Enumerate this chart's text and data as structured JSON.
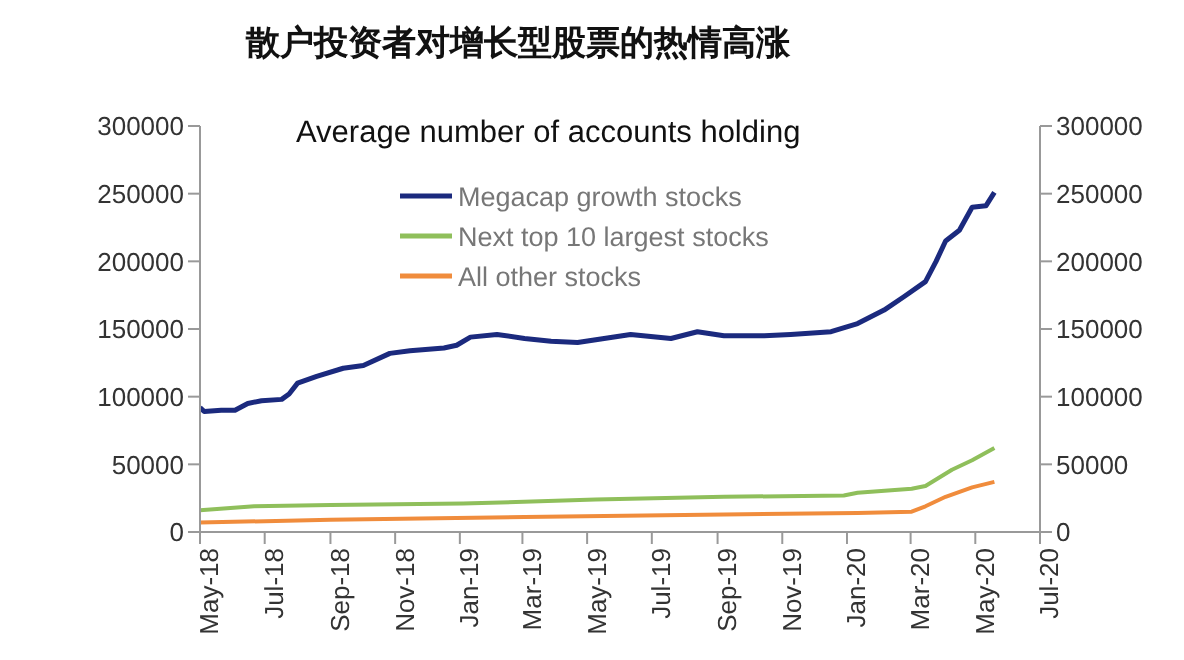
{
  "chart_data": {
    "type": "line",
    "title": "散户投资者对增长型股票的热情高涨",
    "subtitle": "Average number of accounts holding",
    "xlim": [
      "2018-05-01",
      "2020-07-01"
    ],
    "xticks": [
      {
        "value": "2018-05-01",
        "label": "May-18"
      },
      {
        "value": "2018-07-01",
        "label": "Jul-18"
      },
      {
        "value": "2018-09-01",
        "label": "Sep-18"
      },
      {
        "value": "2018-11-01",
        "label": "Nov-18"
      },
      {
        "value": "2019-01-01",
        "label": "Jan-19"
      },
      {
        "value": "2019-03-01",
        "label": "Mar-19"
      },
      {
        "value": "2019-05-01",
        "label": "May-19"
      },
      {
        "value": "2019-07-01",
        "label": "Jul-19"
      },
      {
        "value": "2019-09-01",
        "label": "Sep-19"
      },
      {
        "value": "2019-11-01",
        "label": "Nov-19"
      },
      {
        "value": "2020-01-01",
        "label": "Jan-20"
      },
      {
        "value": "2020-03-01",
        "label": "Mar-20"
      },
      {
        "value": "2020-05-01",
        "label": "May-20"
      },
      {
        "value": "2020-07-01",
        "label": "Jul-20"
      }
    ],
    "ylim": [
      0,
      300000
    ],
    "yticks": [
      0,
      50000,
      100000,
      150000,
      200000,
      250000,
      300000
    ],
    "y2lim": [
      0,
      300000
    ],
    "y2ticks": [
      0,
      50000,
      100000,
      150000,
      200000,
      250000,
      300000
    ],
    "grid": false,
    "legend": "top",
    "marker": "none",
    "line_style": "solid",
    "series": [
      {
        "name": "Megacap growth stocks",
        "color": "#1b2a7e",
        "x": [
          "2018-05-01",
          "2018-05-05",
          "2018-05-21",
          "2018-06-03",
          "2018-06-15",
          "2018-06-28",
          "2018-07-17",
          "2018-07-24",
          "2018-08-01",
          "2018-08-19",
          "2018-09-13",
          "2018-10-02",
          "2018-10-27",
          "2018-11-15",
          "2018-12-17",
          "2018-12-29",
          "2019-01-11",
          "2019-02-05",
          "2019-03-03",
          "2019-03-28",
          "2019-04-22",
          "2019-05-17",
          "2019-06-11",
          "2019-07-19",
          "2019-08-13",
          "2019-09-07",
          "2019-10-15",
          "2019-11-09",
          "2019-12-17",
          "2020-01-11",
          "2020-02-05",
          "2020-02-24",
          "2020-03-15",
          "2020-03-25",
          "2020-04-03",
          "2020-04-16",
          "2020-04-28",
          "2020-05-11",
          "2020-05-19"
        ],
        "values": [
          92000,
          89000,
          90000,
          90000,
          95000,
          97000,
          98000,
          102000,
          110000,
          115000,
          121000,
          123000,
          132000,
          134000,
          136000,
          138000,
          144000,
          146000,
          143000,
          141000,
          140000,
          143000,
          146000,
          143000,
          148000,
          145000,
          145000,
          146000,
          148000,
          154000,
          164000,
          174000,
          185000,
          200000,
          215000,
          223000,
          240000,
          241000,
          251000
        ]
      },
      {
        "name": "Next top 10 largest stocks",
        "color": "#8fbf5b",
        "x": [
          "2018-05-01",
          "2018-06-21",
          "2018-09-01",
          "2019-01-04",
          "2019-05-09",
          "2019-09-07",
          "2019-12-29",
          "2020-01-11",
          "2020-03-02",
          "2020-03-15",
          "2020-04-09",
          "2020-04-28",
          "2020-05-19"
        ],
        "values": [
          16000,
          19000,
          20000,
          21000,
          24000,
          26000,
          27000,
          29000,
          32000,
          34000,
          46000,
          53000,
          62000
        ]
      },
      {
        "name": "All other stocks",
        "color": "#f08c3c",
        "x": [
          "2018-05-01",
          "2018-09-01",
          "2019-03-03",
          "2019-09-07",
          "2020-01-11",
          "2020-03-02",
          "2020-03-15",
          "2020-04-03",
          "2020-04-28",
          "2020-05-19"
        ],
        "values": [
          7000,
          9000,
          11000,
          13000,
          14000,
          15000,
          19000,
          26000,
          33000,
          37000
        ]
      }
    ]
  }
}
